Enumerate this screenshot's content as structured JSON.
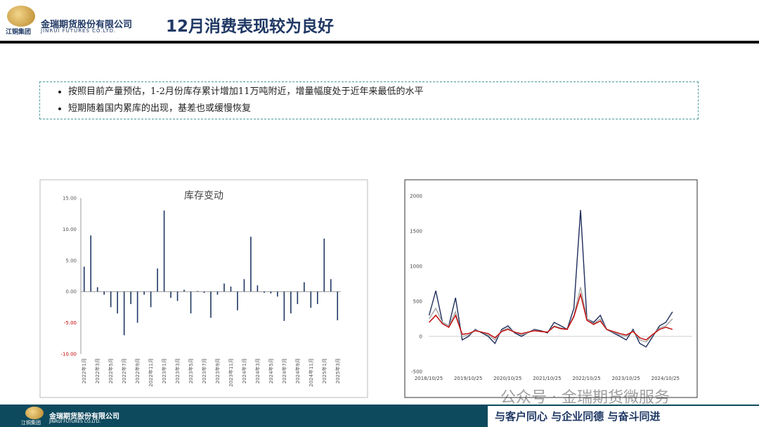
{
  "header": {
    "company": "金瑞期货股份有限公司",
    "company_en": "JINRUI FUTURES CO.LTD.",
    "group": "江铜集团",
    "title": "12月消费表现较为良好"
  },
  "bullets": [
    "按照目前产量预估，1-2月份库存累计增加11万吨附近，增量幅度处于近年来最低的水平",
    "短期随着国内累库的出现，基差也或缓慢恢复"
  ],
  "footer": {
    "slogan": "与客户同心 与企业同德 与奋斗同进",
    "watermark": "公众号 · 金瑞期货微服务"
  },
  "chart_data": [
    {
      "type": "bar",
      "title": "库存变动",
      "color": "#1f3864",
      "negative_tick_color": "#c00000",
      "categories": [
        "2022年1月",
        null,
        "2022年3月",
        null,
        "2022年5月",
        null,
        "2022年7月",
        null,
        "2022年9月",
        null,
        "2022年11月",
        null,
        "2023年1月",
        null,
        "2023年3月",
        null,
        "2023年5月",
        null,
        "2023年7月",
        null,
        "2023年9月",
        null,
        "2023年11月",
        null,
        "2024年1月",
        null,
        "2024年3月",
        null,
        "2024年5月",
        null,
        "2024年7月",
        null,
        "2024年9月",
        null,
        "2024年11月",
        null,
        "2025年1月",
        null,
        "2025年3月"
      ],
      "values": [
        4,
        9,
        0.7,
        -0.5,
        -2.5,
        -3.5,
        -7,
        -2,
        -5,
        -0.5,
        -2.5,
        3.7,
        13,
        -1,
        -1.5,
        0.3,
        -3.5,
        0.1,
        -0.2,
        -4.2,
        -0.5,
        1.3,
        0.8,
        -3,
        2,
        8.8,
        1,
        -0.2,
        -0.3,
        -0.8,
        -4.7,
        -3.5,
        -2,
        1.5,
        -2.6,
        -2,
        8.5,
        2,
        -4.6
      ],
      "ylim": [
        -10,
        15
      ],
      "yticks": [
        {
          "value": -10,
          "label": "-10.00"
        },
        {
          "value": -5,
          "label": "-5.00"
        },
        {
          "value": 0,
          "label": "0.00"
        },
        {
          "value": 5,
          "label": "5.00"
        },
        {
          "value": 10,
          "label": "10.00"
        },
        {
          "value": 15,
          "label": "15.00"
        }
      ]
    },
    {
      "type": "line",
      "x": [
        2018.83,
        2019,
        2019.17,
        2019.33,
        2019.5,
        2019.67,
        2019.83,
        2020,
        2020.17,
        2020.33,
        2020.5,
        2020.67,
        2020.83,
        2021,
        2021.17,
        2021.33,
        2021.5,
        2021.67,
        2021.83,
        2022,
        2022.17,
        2022.33,
        2022.5,
        2022.67,
        2022.83,
        2023,
        2023.17,
        2023.33,
        2023.5,
        2023.67,
        2023.83,
        2024,
        2024.17,
        2024.33,
        2024.5,
        2024.67,
        2024.83,
        2025
      ],
      "series": [
        {
          "name": null,
          "color": "#1f2d5c",
          "values": [
            300,
            650,
            200,
            150,
            550,
            -50,
            0,
            100,
            50,
            0,
            -100,
            100,
            150,
            50,
            0,
            50,
            100,
            80,
            50,
            200,
            150,
            100,
            400,
            1800,
            250,
            200,
            300,
            100,
            50,
            0,
            -50,
            100,
            -100,
            -150,
            0,
            150,
            200,
            350
          ]
        },
        {
          "name": null,
          "color": "#a6a6a6",
          "values": [
            250,
            400,
            200,
            150,
            350,
            0,
            20,
            90,
            60,
            20,
            -50,
            80,
            120,
            60,
            20,
            50,
            90,
            70,
            60,
            150,
            120,
            100,
            300,
            700,
            250,
            180,
            250,
            100,
            60,
            20,
            0,
            80,
            -50,
            -80,
            20,
            120,
            150,
            250
          ]
        },
        {
          "name": null,
          "color": "#c00000",
          "values": [
            200,
            300,
            180,
            130,
            300,
            30,
            40,
            80,
            60,
            40,
            -20,
            70,
            100,
            60,
            40,
            60,
            80,
            70,
            60,
            140,
            110,
            100,
            280,
            600,
            230,
            170,
            220,
            100,
            70,
            40,
            20,
            70,
            -20,
            -50,
            30,
            100,
            130,
            100
          ]
        }
      ],
      "xlim": [
        2018.82,
        2025.5
      ],
      "xticks": [
        {
          "value": 2018.82,
          "label": "2018/10/25"
        },
        {
          "value": 2019.82,
          "label": "2019/10/25"
        },
        {
          "value": 2020.82,
          "label": "2020/10/25"
        },
        {
          "value": 2021.82,
          "label": "2021/10/25"
        },
        {
          "value": 2022.82,
          "label": "2022/10/25"
        },
        {
          "value": 2023.82,
          "label": "2023/10/25"
        },
        {
          "value": 2024.82,
          "label": "2024/10/25"
        }
      ],
      "ylim": [
        -500,
        2000
      ],
      "yticks": [
        -500,
        0,
        500,
        1000,
        1500,
        2000
      ]
    }
  ]
}
